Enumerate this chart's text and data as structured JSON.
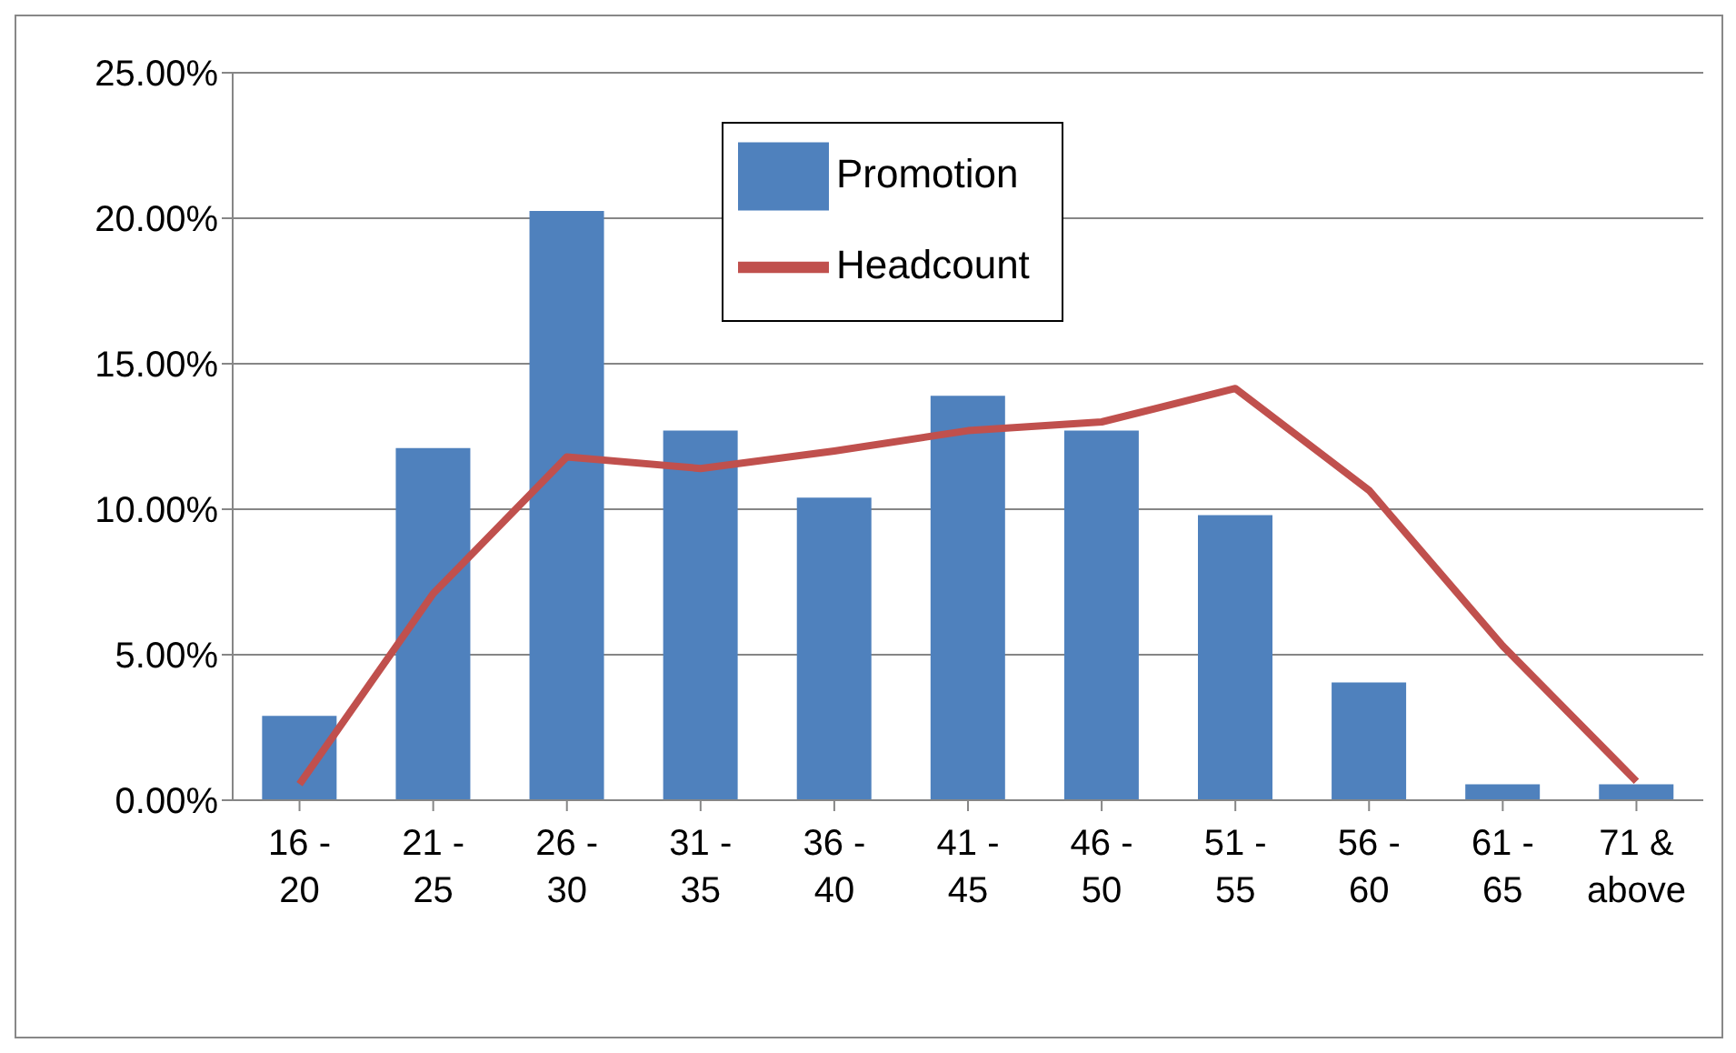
{
  "chart_data": {
    "type": "bar",
    "categories": [
      "16 - 20",
      "21 - 25",
      "26 - 30",
      "31 - 35",
      "36 - 40",
      "41 - 45",
      "46 - 50",
      "51 - 55",
      "56 - 60",
      "61 - 65",
      "71 & above"
    ],
    "series": [
      {
        "name": "Promotion",
        "color": "#4f81bd",
        "values": [
          2.9,
          12.1,
          20.25,
          12.7,
          10.4,
          13.9,
          12.7,
          9.8,
          4.05,
          0.55,
          0.55
        ]
      },
      {
        "name": "Headcount",
        "type": "line",
        "color": "#c0504d",
        "values": [
          0.55,
          7.1,
          11.8,
          11.4,
          12.0,
          12.7,
          13.0,
          14.15,
          10.65,
          5.3,
          0.65
        ]
      }
    ],
    "ylim": [
      0,
      25
    ],
    "yticks": [
      {
        "value": 0,
        "label": "0.00%"
      },
      {
        "value": 5,
        "label": "5.00%"
      },
      {
        "value": 10,
        "label": "10.00%"
      },
      {
        "value": 15,
        "label": "15.00%"
      },
      {
        "value": 20,
        "label": "20.00%"
      },
      {
        "value": 25,
        "label": "25.00%"
      }
    ],
    "grid": "y",
    "legend": "top",
    "marker": "none"
  }
}
